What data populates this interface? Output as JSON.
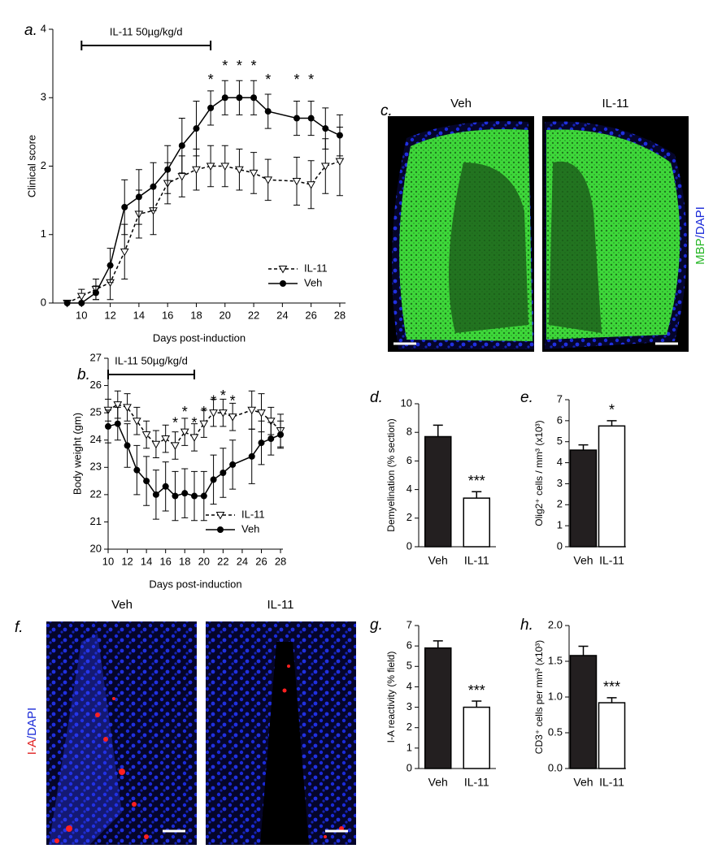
{
  "chart_data": [
    {
      "type": "line",
      "panel": "a.",
      "xlabel": "Days post-induction",
      "ylabel": "Clinical score",
      "xlim": [
        8,
        28.4
      ],
      "xticks": [
        10,
        12,
        14,
        16,
        18,
        20,
        22,
        24,
        26,
        28
      ],
      "ylim": [
        0,
        4
      ],
      "yticks": [
        0,
        1,
        2,
        3,
        4
      ],
      "legend": "lower right",
      "treatment": {
        "label": "IL-11 50µg/kg/d",
        "start": 10,
        "end": 19
      },
      "x": [
        9,
        10,
        11,
        12,
        13,
        14,
        15,
        16,
        17,
        18,
        19,
        20,
        21,
        22,
        23,
        25,
        26,
        27,
        28
      ],
      "series": [
        {
          "name": "IL-11",
          "color": "#000000",
          "marker": "triangle",
          "dashed": true,
          "values": [
            0,
            0.1,
            0.2,
            0.3,
            0.75,
            1.3,
            1.35,
            1.75,
            1.85,
            1.95,
            2.0,
            2.0,
            1.95,
            1.9,
            1.8,
            1.78,
            1.73,
            2.0,
            2.07
          ],
          "errors": [
            0,
            0.1,
            0.15,
            0.25,
            0.4,
            0.35,
            0.35,
            0.3,
            0.3,
            0.3,
            0.3,
            0.3,
            0.3,
            0.3,
            0.3,
            0.35,
            0.35,
            0.4,
            0.5
          ]
        },
        {
          "name": "Veh",
          "color": "#000000",
          "marker": "circle",
          "dashed": false,
          "values": [
            0,
            0,
            0.15,
            0.55,
            1.4,
            1.55,
            1.7,
            1.95,
            2.3,
            2.55,
            2.85,
            3.0,
            3.0,
            3.0,
            2.8,
            2.7,
            2.7,
            2.55,
            2.45
          ],
          "errors": [
            0,
            0,
            0.1,
            0.25,
            0.4,
            0.4,
            0.35,
            0.35,
            0.4,
            0.4,
            0.25,
            0.25,
            0.25,
            0.25,
            0.25,
            0.25,
            0.25,
            0.3,
            0.3
          ]
        }
      ],
      "annotations": [
        {
          "x": 19,
          "y": 3.25,
          "label": "*"
        },
        {
          "x": 20,
          "y": 3.45,
          "label": "*"
        },
        {
          "x": 21,
          "y": 3.45,
          "label": "*"
        },
        {
          "x": 22,
          "y": 3.45,
          "label": "*"
        },
        {
          "x": 23,
          "y": 3.25,
          "label": "*"
        },
        {
          "x": 25,
          "y": 3.25,
          "label": "*"
        },
        {
          "x": 26,
          "y": 3.25,
          "label": "*"
        }
      ]
    },
    {
      "type": "line",
      "panel": "b.",
      "xlabel": "Days post-induction",
      "ylabel": "Body weight (gm)",
      "xlim": [
        10,
        28.25
      ],
      "xticks": [
        10,
        12,
        14,
        16,
        18,
        20,
        22,
        24,
        26,
        28
      ],
      "ylim": [
        20,
        27
      ],
      "yticks": [
        20,
        21,
        22,
        23,
        24,
        25,
        26,
        27
      ],
      "legend": "lower right",
      "treatment": {
        "label": "IL-11 50µg/kg/d",
        "start": 10,
        "end": 19
      },
      "x": [
        10,
        11,
        12,
        13,
        14,
        15,
        16,
        17,
        18,
        19,
        20,
        21,
        22,
        23,
        25,
        26,
        27,
        28
      ],
      "series": [
        {
          "name": "IL-11",
          "color": "#000000",
          "marker": "triangle",
          "dashed": true,
          "values": [
            25.1,
            25.3,
            25.2,
            24.7,
            24.2,
            23.85,
            24.05,
            23.8,
            24.3,
            24.1,
            24.6,
            25.0,
            25.0,
            24.85,
            25.1,
            25.0,
            24.7,
            24.35
          ],
          "errors": [
            0.4,
            0.5,
            0.5,
            0.5,
            0.5,
            0.5,
            0.5,
            0.5,
            0.5,
            0.5,
            0.5,
            0.5,
            0.5,
            0.5,
            0.7,
            0.7,
            0.5,
            0.6
          ]
        },
        {
          "name": "Veh",
          "color": "#000000",
          "marker": "circle",
          "dashed": false,
          "values": [
            24.5,
            24.6,
            23.8,
            22.9,
            22.5,
            22.0,
            22.3,
            21.95,
            22.05,
            21.95,
            21.95,
            22.55,
            22.8,
            23.1,
            23.4,
            23.9,
            24.05,
            24.2
          ],
          "errors": [
            0.6,
            0.6,
            0.8,
            0.9,
            0.9,
            0.9,
            0.9,
            0.9,
            0.9,
            0.9,
            0.9,
            0.9,
            0.9,
            0.9,
            1.0,
            0.8,
            0.6,
            0.5
          ]
        }
      ],
      "annotations": [
        {
          "x": 17,
          "y": 24.6,
          "label": "*"
        },
        {
          "x": 18,
          "y": 25.0,
          "label": "*"
        },
        {
          "x": 19,
          "y": 24.6,
          "label": "*"
        },
        {
          "x": 20,
          "y": 25.0,
          "label": "*"
        },
        {
          "x": 21,
          "y": 25.4,
          "label": "*"
        },
        {
          "x": 22,
          "y": 25.6,
          "label": "*"
        },
        {
          "x": 23,
          "y": 25.4,
          "label": "*"
        }
      ]
    },
    {
      "type": "bar",
      "panel": "d.",
      "ylabel": "Demyelination (% section)",
      "categories": [
        "Veh",
        "IL-11"
      ],
      "colors": [
        "#231f20",
        "#ffffff"
      ],
      "values": [
        7.7,
        3.4
      ],
      "errors": [
        0.8,
        0.45
      ],
      "ylim": [
        0,
        10
      ],
      "yticks": [
        0,
        2,
        4,
        6,
        8,
        10
      ],
      "annotations": [
        {
          "index": 1,
          "label": "***"
        }
      ]
    },
    {
      "type": "bar",
      "panel": "e.",
      "ylabel": "Olig2⁺ cells / mm³ (x10³)",
      "categories": [
        "Veh",
        "IL-11"
      ],
      "colors": [
        "#231f20",
        "#ffffff"
      ],
      "values": [
        4.6,
        5.75
      ],
      "errors": [
        0.25,
        0.25
      ],
      "ylim": [
        0,
        7
      ],
      "yticks": [
        0,
        1,
        2,
        3,
        4,
        5,
        6,
        7
      ],
      "annotations": [
        {
          "index": 1,
          "label": "*"
        }
      ]
    },
    {
      "type": "bar",
      "panel": "g.",
      "ylabel": "I-A reactivity (% field)",
      "categories": [
        "Veh",
        "IL-11"
      ],
      "colors": [
        "#231f20",
        "#ffffff"
      ],
      "values": [
        5.9,
        3.0
      ],
      "errors": [
        0.35,
        0.3
      ],
      "ylim": [
        0,
        7
      ],
      "yticks": [
        0,
        1,
        2,
        3,
        4,
        5,
        6,
        7
      ],
      "annotations": [
        {
          "index": 1,
          "label": "***"
        }
      ]
    },
    {
      "type": "bar",
      "panel": "h.",
      "ylabel": "CD3⁺ cells per mm³ (x10³)",
      "categories": [
        "Veh",
        "IL-11"
      ],
      "colors": [
        "#231f20",
        "#ffffff"
      ],
      "values": [
        1.58,
        0.92
      ],
      "errors": [
        0.13,
        0.07
      ],
      "ylim": [
        0,
        2
      ],
      "yticks": [
        {
          "value": 0,
          "label": "0.0"
        },
        {
          "value": 0.5,
          "label": "0.5"
        },
        {
          "value": 1,
          "label": "1.0"
        },
        {
          "value": 1.5,
          "label": "1.5"
        },
        {
          "value": 2,
          "label": "2.0"
        }
      ],
      "annotations": [
        {
          "index": 1,
          "label": "***"
        }
      ]
    }
  ],
  "images": [
    {
      "panel": "c.",
      "labels": [
        "Veh",
        "IL-11"
      ],
      "stain": [
        "MBP",
        "/DAPI"
      ]
    },
    {
      "panel": "f.",
      "labels": [
        "Veh",
        "IL-11"
      ],
      "stain": [
        "I-A",
        "/DAPI"
      ]
    }
  ]
}
